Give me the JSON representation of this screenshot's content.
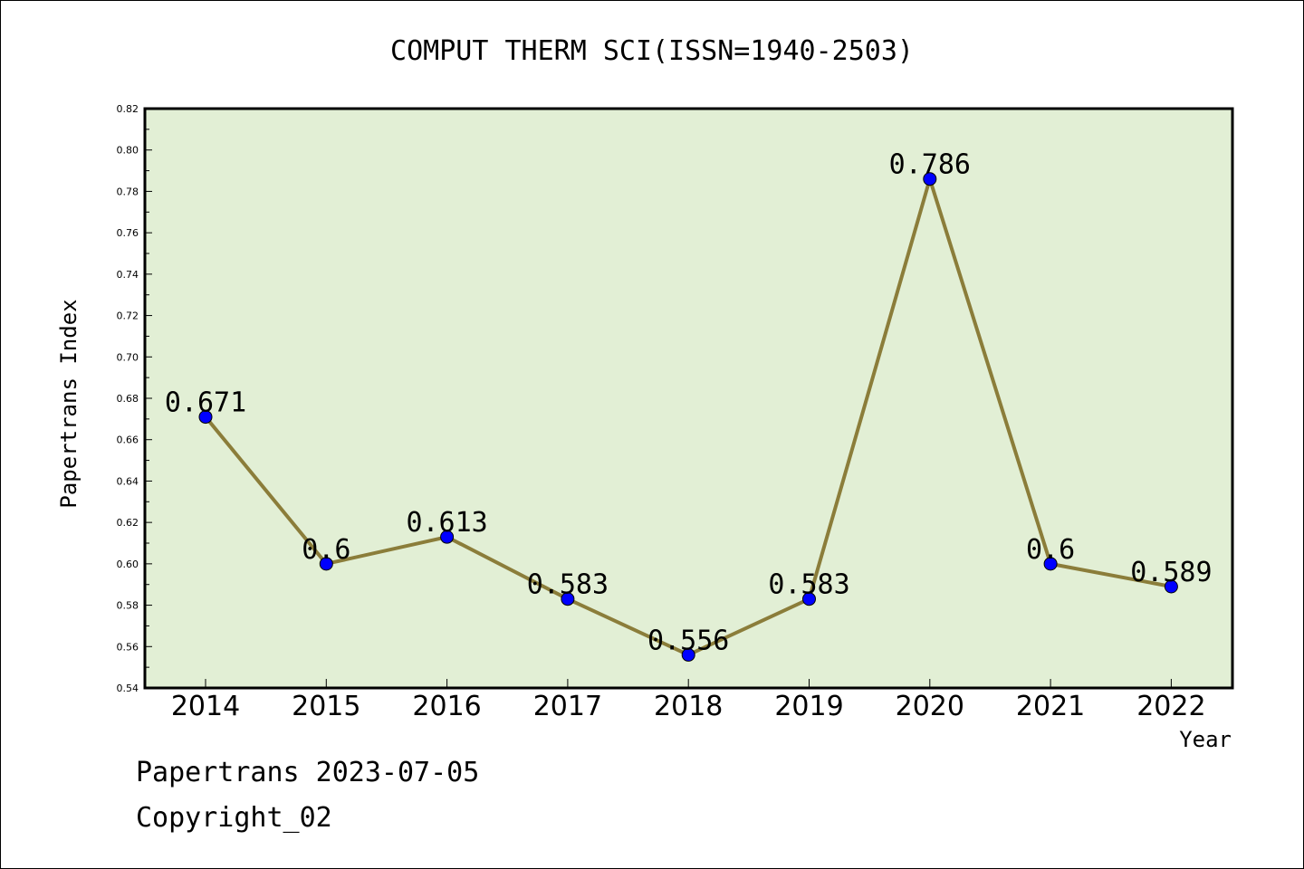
{
  "chart_data": {
    "type": "line",
    "title": "COMPUT THERM SCI(ISSN=1940-2503)",
    "xlabel": "Year",
    "ylabel": "Papertrans Index",
    "categories": [
      "2014",
      "2015",
      "2016",
      "2017",
      "2018",
      "2019",
      "2020",
      "2021",
      "2022"
    ],
    "values": [
      0.671,
      0.6,
      0.613,
      0.583,
      0.556,
      0.583,
      0.786,
      0.6,
      0.589
    ],
    "data_labels": [
      "0.671",
      "0.6",
      "0.613",
      "0.583",
      "0.556",
      "0.583",
      "0.786",
      "0.6",
      "0.589"
    ],
    "ylim": [
      0.54,
      0.82
    ],
    "yticks": [
      "0.54",
      "0.56",
      "0.58",
      "0.60",
      "0.62",
      "0.64",
      "0.66",
      "0.68",
      "0.70",
      "0.72",
      "0.74",
      "0.76",
      "0.78",
      "0.80",
      "0.82"
    ],
    "grid": false,
    "colors": {
      "plot_background": "#e2efd5",
      "line": "#8b7d3a",
      "marker": "#0000ff"
    }
  },
  "footer": {
    "source": "Papertrans 2023-07-05",
    "copyright": "Copyright_02"
  }
}
